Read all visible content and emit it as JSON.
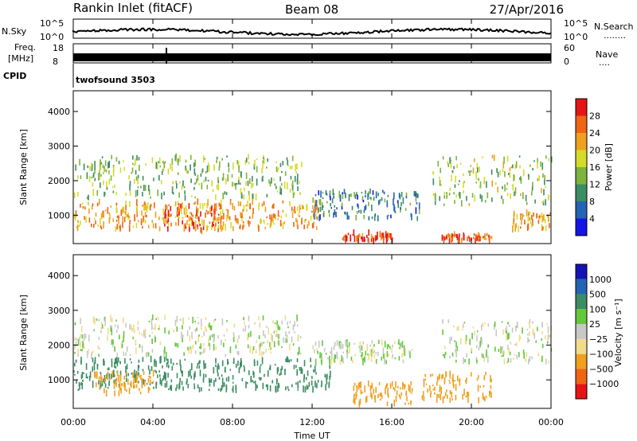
{
  "header": {
    "station": "Rankin Inlet (fitACF)",
    "beam": "Beam 08",
    "date": "27/Apr/2016"
  },
  "top_panels": {
    "nsky_label": "N.Sky",
    "nsearch_label": "N.Search",
    "nsky_ticks": [
      "10^5",
      "10^0"
    ],
    "nsearch_ticks": [
      "10^5",
      "10^0"
    ],
    "nsearch_dots": "........",
    "freq_label_1": "Freq.",
    "freq_label_2": "[MHz]",
    "freq_ticks": [
      "18",
      "8"
    ],
    "nave_label": "Nave",
    "nave_ticks": [
      "60",
      "0"
    ],
    "nave_dots": "....",
    "cpid_label": "CPID",
    "cpid_value": "twofsound 3503"
  },
  "colors": {
    "power_scale": [
      "#1414e6",
      "#2464b4",
      "#3c8c64",
      "#7cb43c",
      "#d4dc28",
      "#f0a020",
      "#f06414",
      "#e61414"
    ],
    "velocity_scale": [
      "#e61414",
      "#f06414",
      "#f0a020",
      "#f0dc8c",
      "#c8c8c8",
      "#64c83c",
      "#3c8c64",
      "#2464b4",
      "#1414b4"
    ]
  },
  "chart_data": [
    {
      "type": "heatmap",
      "quantity": "power",
      "xlabel": "",
      "ylabel": "Slant Range [km]",
      "x_ticks": [
        "00:00",
        "04:00",
        "08:00",
        "12:00",
        "16:00",
        "20:00",
        "00:00"
      ],
      "y_ticks": [
        "1000",
        "2000",
        "3000",
        "4000"
      ],
      "xlim": [
        0,
        24
      ],
      "ylim": [
        180,
        4600
      ],
      "colorbar_label": "Power [dB]",
      "colorbar_ticks": [
        "4",
        "8",
        "12",
        "16",
        "20",
        "24",
        "28"
      ],
      "colorbar_range": [
        0,
        32
      ],
      "scatter_bands": [
        {
          "t0": 0.0,
          "t1": 12.5,
          "r0": 600,
          "r1": 1400,
          "value": 22
        },
        {
          "t0": 0.0,
          "t1": 11.5,
          "r0": 1500,
          "r1": 2700,
          "value": 14
        },
        {
          "t0": 4.5,
          "t1": 7.5,
          "r0": 500,
          "r1": 1300,
          "value": 27
        },
        {
          "t0": 12.0,
          "t1": 17.5,
          "r0": 900,
          "r1": 1700,
          "value": 9
        },
        {
          "t0": 13.5,
          "t1": 16.0,
          "r0": 250,
          "r1": 500,
          "value": 28
        },
        {
          "t0": 18.0,
          "t1": 24.0,
          "r0": 1300,
          "r1": 2700,
          "value": 15
        },
        {
          "t0": 18.5,
          "t1": 21.0,
          "r0": 250,
          "r1": 450,
          "value": 27
        },
        {
          "t0": 22.0,
          "t1": 24.0,
          "r0": 600,
          "r1": 1100,
          "value": 22
        }
      ]
    },
    {
      "type": "heatmap",
      "quantity": "velocity",
      "xlabel": "Time UT",
      "ylabel": "Slant Range [km]",
      "x_ticks": [
        "00:00",
        "04:00",
        "08:00",
        "12:00",
        "16:00",
        "20:00",
        "00:00"
      ],
      "y_ticks": [
        "1000",
        "2000",
        "3000",
        "4000"
      ],
      "xlim": [
        0,
        24
      ],
      "ylim": [
        180,
        4600
      ],
      "colorbar_label": "Velocity [m s⁻¹]",
      "colorbar_ticks": [
        "1000",
        "500",
        "100",
        "25",
        "−25",
        "−100",
        "−500",
        "−1000"
      ],
      "scatter_bands": [
        {
          "t0": 0.0,
          "t1": 11.5,
          "r0": 1700,
          "r1": 2800,
          "value": 0
        },
        {
          "t0": 0.0,
          "t1": 13.0,
          "r0": 700,
          "r1": 1600,
          "value": 300
        },
        {
          "t0": 1.0,
          "t1": 4.0,
          "r0": 600,
          "r1": 1200,
          "value": -300
        },
        {
          "t0": 12.0,
          "t1": 17.0,
          "r0": 1500,
          "r1": 2100,
          "value": 0
        },
        {
          "t0": 14.0,
          "t1": 17.0,
          "r0": 300,
          "r1": 900,
          "value": -400
        },
        {
          "t0": 17.5,
          "t1": 21.0,
          "r0": 400,
          "r1": 1200,
          "value": -300
        },
        {
          "t0": 18.5,
          "t1": 24.0,
          "r0": 1500,
          "r1": 2700,
          "value": 0
        }
      ]
    }
  ]
}
